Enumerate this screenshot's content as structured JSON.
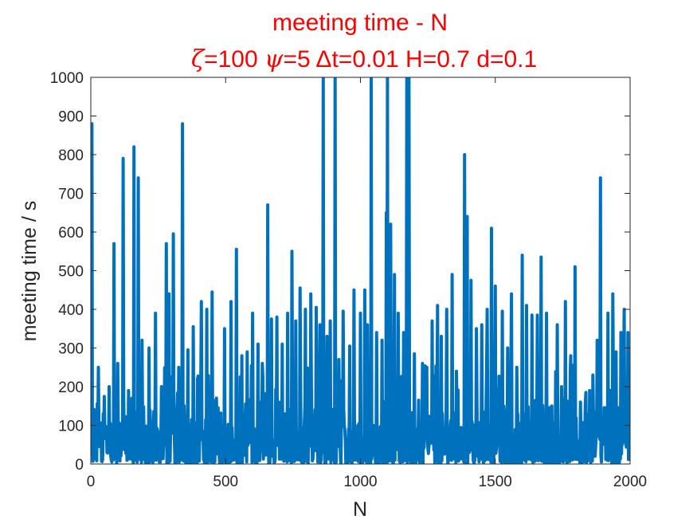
{
  "chart_data": {
    "type": "line",
    "title": "meeting time - N",
    "subtitle": {
      "zeta_sym": "ζ",
      "zeta_val": "=100 ",
      "psi_sym": "ψ",
      "psi_val": "=5 ",
      "rest": "Δt=0.01 H=0.7 d=0.1"
    },
    "xlabel": "N",
    "ylabel": "meeting time / s",
    "xlim": [
      0,
      2000
    ],
    "ylim": [
      0,
      1000
    ],
    "xticks": [
      "0",
      "500",
      "1000",
      "1500",
      "2000"
    ],
    "yticks": [
      "0",
      "100",
      "200",
      "300",
      "400",
      "500",
      "600",
      "700",
      "800",
      "900",
      "1000"
    ],
    "grid": false,
    "legend": "none",
    "series_color": "#0072bd",
    "title_color": "#ff0000",
    "peaks": [
      [
        3,
        880
      ],
      [
        15,
        120
      ],
      [
        28,
        250
      ],
      [
        45,
        130
      ],
      [
        68,
        200
      ],
      [
        85,
        570
      ],
      [
        100,
        260
      ],
      [
        120,
        790
      ],
      [
        140,
        190
      ],
      [
        160,
        820
      ],
      [
        175,
        740
      ],
      [
        190,
        320
      ],
      [
        215,
        300
      ],
      [
        240,
        390
      ],
      [
        262,
        200
      ],
      [
        280,
        570
      ],
      [
        290,
        440
      ],
      [
        305,
        595
      ],
      [
        325,
        250
      ],
      [
        340,
        880
      ],
      [
        360,
        295
      ],
      [
        380,
        355
      ],
      [
        395,
        220
      ],
      [
        410,
        420
      ],
      [
        430,
        400
      ],
      [
        450,
        445
      ],
      [
        470,
        120
      ],
      [
        495,
        350
      ],
      [
        520,
        420
      ],
      [
        540,
        555
      ],
      [
        560,
        280
      ],
      [
        580,
        290
      ],
      [
        600,
        390
      ],
      [
        620,
        310
      ],
      [
        635,
        260
      ],
      [
        655,
        670
      ],
      [
        670,
        375
      ],
      [
        690,
        380
      ],
      [
        710,
        310
      ],
      [
        730,
        390
      ],
      [
        745,
        550
      ],
      [
        760,
        370
      ],
      [
        775,
        455
      ],
      [
        795,
        400
      ],
      [
        815,
        440
      ],
      [
        835,
        405
      ],
      [
        850,
        360
      ],
      [
        862,
        1000
      ],
      [
        875,
        330
      ],
      [
        888,
        370
      ],
      [
        905,
        1000
      ],
      [
        920,
        270
      ],
      [
        935,
        395
      ],
      [
        960,
        305
      ],
      [
        975,
        450
      ],
      [
        1000,
        390
      ],
      [
        1015,
        450
      ],
      [
        1025,
        360
      ],
      [
        1040,
        1000
      ],
      [
        1060,
        340
      ],
      [
        1080,
        320
      ],
      [
        1095,
        650
      ],
      [
        1100,
        1000
      ],
      [
        1112,
        620
      ],
      [
        1125,
        490
      ],
      [
        1140,
        390
      ],
      [
        1160,
        340
      ],
      [
        1172,
        1000
      ],
      [
        1180,
        1000
      ],
      [
        1200,
        285
      ],
      [
        1215,
        165
      ],
      [
        1230,
        260
      ],
      [
        1245,
        250
      ],
      [
        1265,
        370
      ],
      [
        1285,
        410
      ],
      [
        1300,
        330
      ],
      [
        1320,
        400
      ],
      [
        1340,
        490
      ],
      [
        1355,
        240
      ],
      [
        1370,
        80
      ],
      [
        1385,
        800
      ],
      [
        1395,
        640
      ],
      [
        1410,
        475
      ],
      [
        1430,
        350
      ],
      [
        1450,
        360
      ],
      [
        1470,
        400
      ],
      [
        1485,
        610
      ],
      [
        1500,
        460
      ],
      [
        1525,
        395
      ],
      [
        1545,
        300
      ],
      [
        1560,
        440
      ],
      [
        1580,
        250
      ],
      [
        1600,
        540
      ],
      [
        1615,
        410
      ],
      [
        1635,
        385
      ],
      [
        1655,
        385
      ],
      [
        1670,
        535
      ],
      [
        1690,
        390
      ],
      [
        1710,
        150
      ],
      [
        1730,
        360
      ],
      [
        1745,
        200
      ],
      [
        1760,
        420
      ],
      [
        1780,
        280
      ],
      [
        1795,
        510
      ],
      [
        1815,
        160
      ],
      [
        1835,
        185
      ],
      [
        1850,
        190
      ],
      [
        1862,
        230
      ],
      [
        1877,
        320
      ],
      [
        1890,
        740
      ],
      [
        1905,
        140
      ],
      [
        1918,
        390
      ],
      [
        1935,
        440
      ],
      [
        1948,
        290
      ],
      [
        1965,
        340
      ],
      [
        1978,
        400
      ],
      [
        1992,
        340
      ]
    ]
  }
}
